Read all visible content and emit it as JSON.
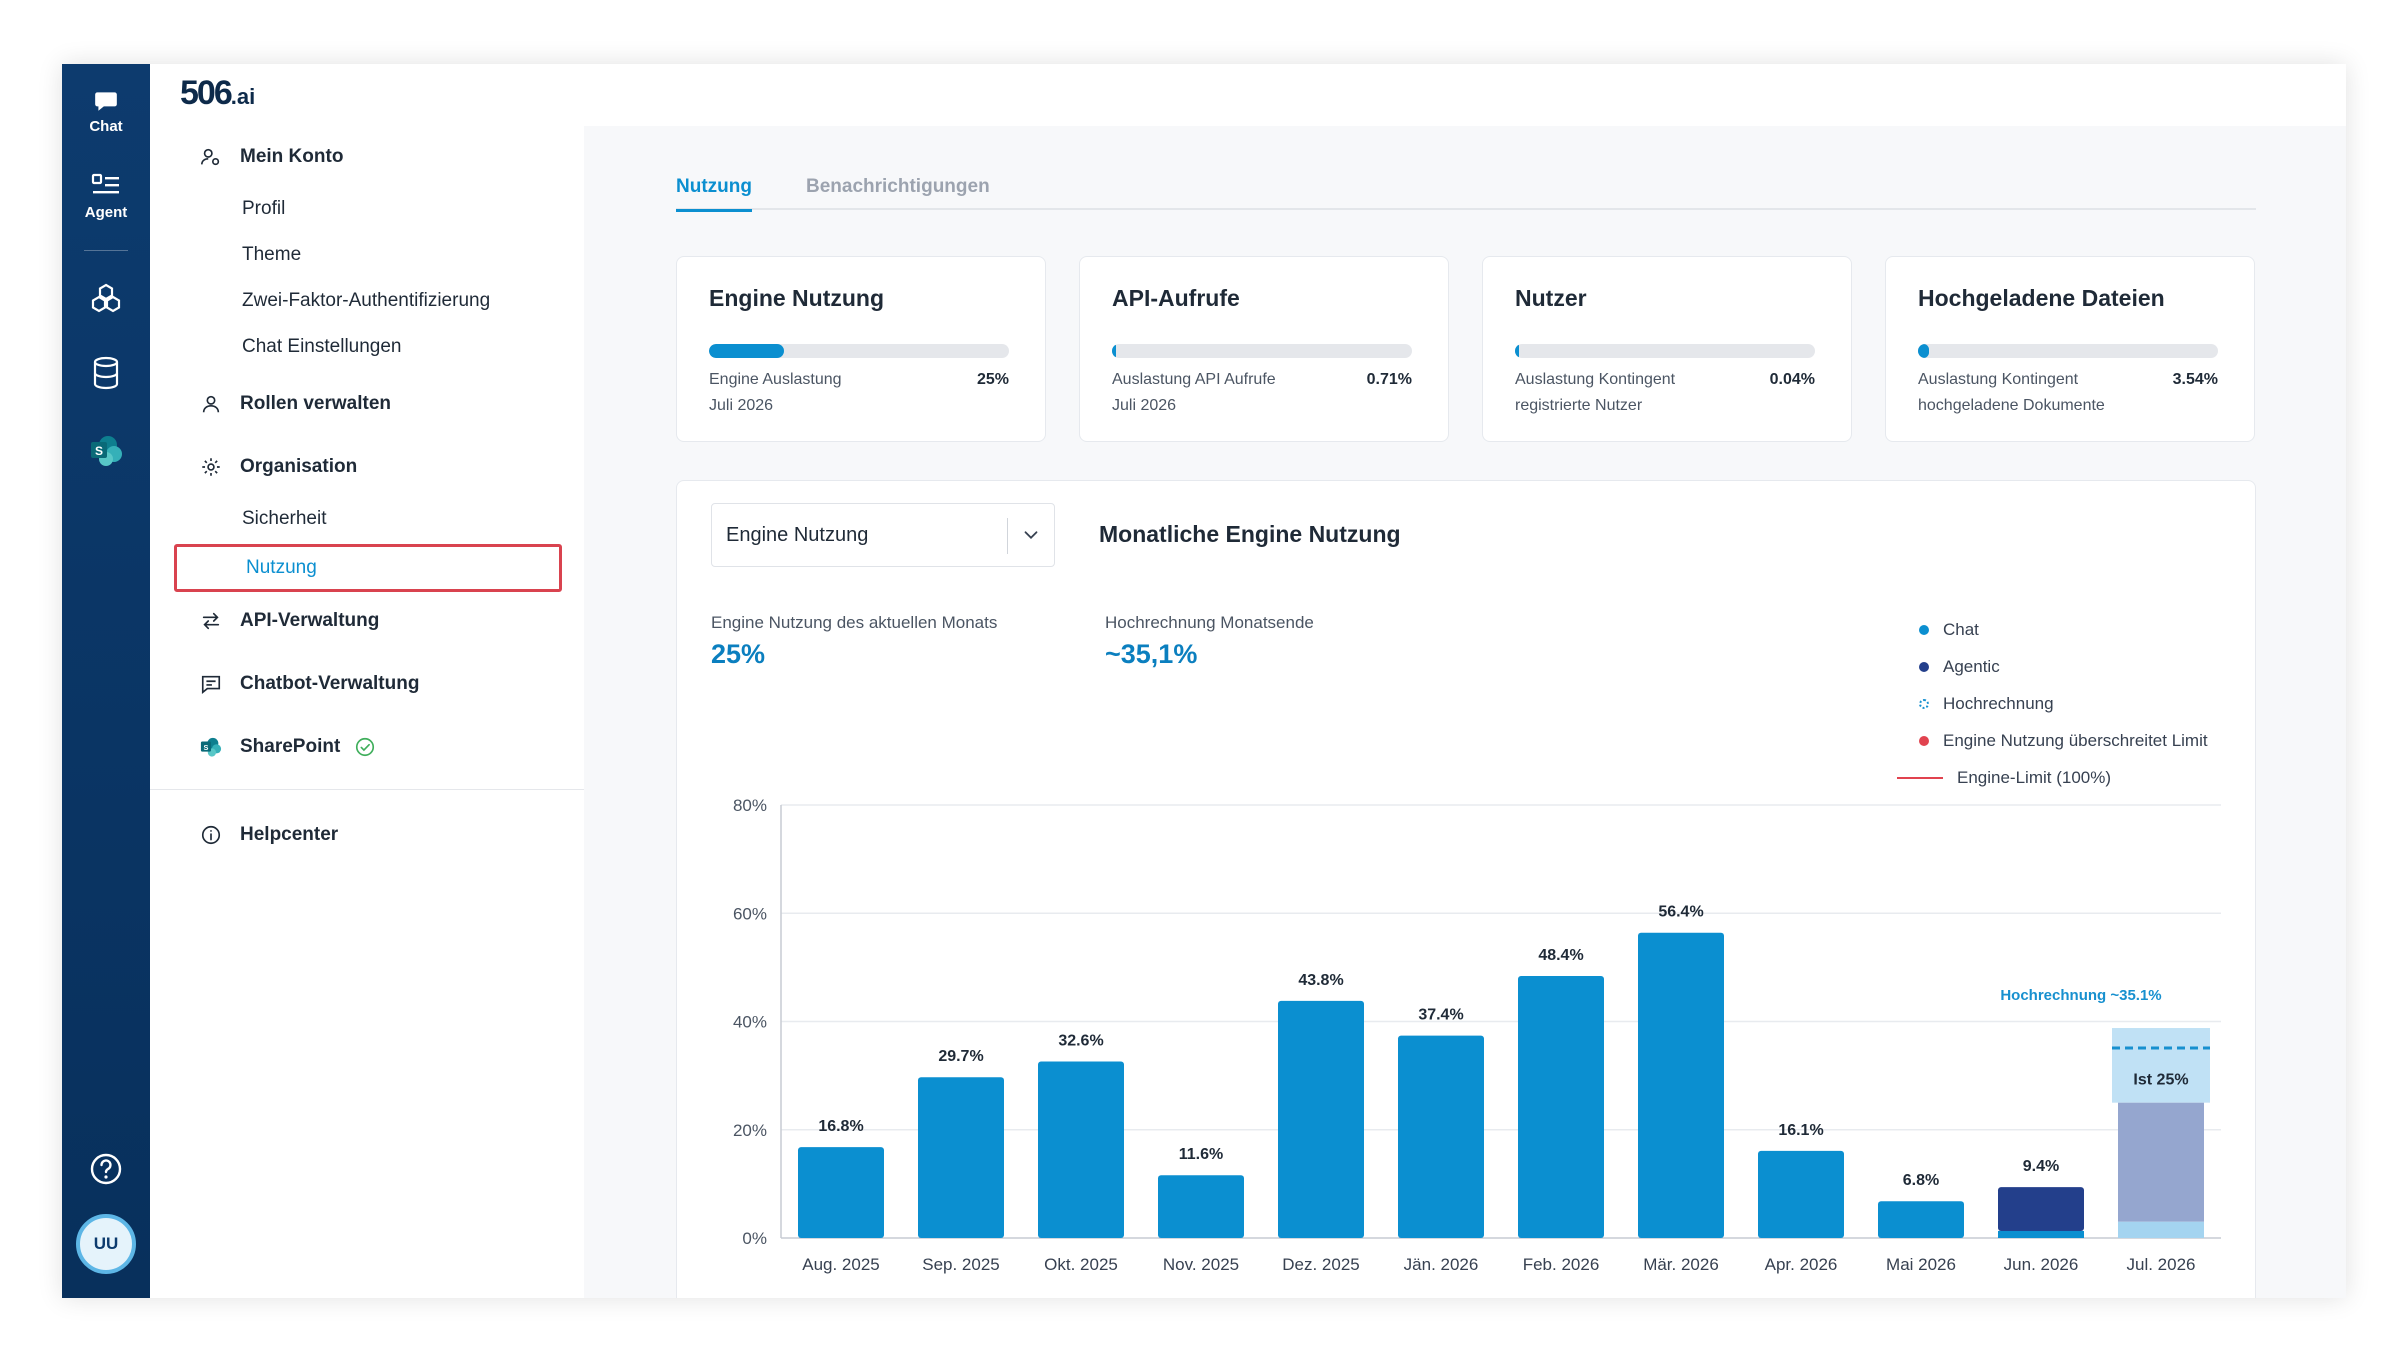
{
  "rail": {
    "chat_label": "Chat",
    "agent_label": "Agent",
    "avatar_initials": "UU"
  },
  "sidebar": {
    "logo": "506",
    "logo_suffix": ".ai",
    "mein_konto": "Mein Konto",
    "profil": "Profil",
    "theme": "Theme",
    "zwei_faktor": "Zwei-Faktor-Authentifizierung",
    "chat_einstellungen": "Chat Einstellungen",
    "rollen": "Rollen verwalten",
    "organisation": "Organisation",
    "sicherheit": "Sicherheit",
    "nutzung": "Nutzung",
    "api_verwaltung": "API-Verwaltung",
    "chatbot_verwaltung": "Chatbot-Verwaltung",
    "sharepoint": "SharePoint",
    "helpcenter": "Helpcenter"
  },
  "tabs": {
    "nutzung": "Nutzung",
    "benachrichtigungen": "Benachrichtigungen"
  },
  "cards": [
    {
      "title": "Engine Nutzung",
      "line1": "Engine Auslastung",
      "line2": "Juli 2026",
      "percent": "25%",
      "fill": 0.25
    },
    {
      "title": "API-Aufrufe",
      "line1": "Auslastung API Aufrufe",
      "line2": "Juli 2026",
      "percent": "0.71%",
      "fill": 0.0071
    },
    {
      "title": "Nutzer",
      "line1": "Auslastung Kontingent",
      "line2": "registrierte Nutzer",
      "percent": "0.04%",
      "fill": 0.0004
    },
    {
      "title": "Hochgeladene Dateien",
      "line1": "Auslastung Kontingent",
      "line2": "hochgeladene Dokumente",
      "percent": "3.54%",
      "fill": 0.0354
    }
  ],
  "panel": {
    "select_value": "Engine Nutzung",
    "title": "Monatliche Engine Nutzung",
    "current_label": "Engine Nutzung des aktuellen Monats",
    "current_value": "25%",
    "forecast_label": "Hochrechnung Monatsende",
    "forecast_value": "~35,1%"
  },
  "legend": {
    "chat": "Chat",
    "agentic": "Agentic",
    "hochrechnung": "Hochrechnung",
    "limit_exceeded": "Engine Nutzung überschreitet Limit",
    "engine_limit": "Engine-Limit (100%)"
  },
  "colors": {
    "chat": "#0b8fd0",
    "agentic": "#233f8b",
    "forecast_fill": "#b5dcf3",
    "forecast_line": "#1790cf",
    "limit": "#e1434f",
    "accent": "#0b8fd0"
  },
  "chart_data": {
    "type": "bar",
    "categories": [
      "Aug. 2025",
      "Sep. 2025",
      "Okt. 2025",
      "Nov. 2025",
      "Dez. 2025",
      "Jän. 2026",
      "Feb. 2026",
      "Mär. 2026",
      "Apr. 2026",
      "Mai 2026",
      "Jun. 2026",
      "Jul. 2026"
    ],
    "series": [
      {
        "name": "Chat",
        "values": [
          16.8,
          29.7,
          32.6,
          11.6,
          43.8,
          37.4,
          48.4,
          56.4,
          16.1,
          6.8,
          1.3,
          3
        ]
      },
      {
        "name": "Agentic",
        "values": [
          0,
          0,
          0,
          0,
          0,
          0,
          0,
          0,
          0,
          0,
          8.1,
          22
        ]
      }
    ],
    "data_labels": [
      "16.8%",
      "29.7%",
      "32.6%",
      "11.6%",
      "43.8%",
      "37.4%",
      "48.4%",
      "56.4%",
      "16.1%",
      "6.8%",
      "9.4%",
      ""
    ],
    "forecast": {
      "category": "Jul. 2026",
      "value": 35.1,
      "label": "Hochrechnung ~35.1%",
      "actual_value": 25,
      "actual_label": "Ist 25%"
    },
    "y_ticks": [
      "0%",
      "20%",
      "40%",
      "60%",
      "80%"
    ],
    "ylim": [
      0,
      80
    ],
    "grid": true,
    "legend_position": "top-right"
  }
}
